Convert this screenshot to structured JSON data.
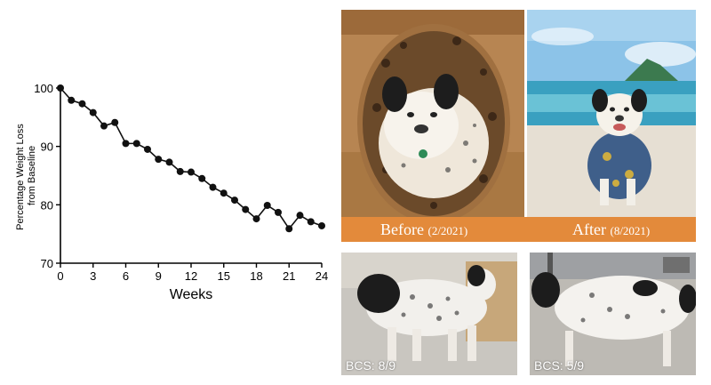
{
  "chart_data": {
    "type": "line",
    "title": "",
    "xlabel": "Weeks",
    "ylabel": "Percentage Weight Loss from Baseline",
    "ylabel_lines": [
      "Percentage Weight Loss",
      "from Baseline"
    ],
    "xlim": [
      0,
      24
    ],
    "ylim": [
      70,
      100
    ],
    "xticks": [
      0,
      3,
      6,
      9,
      12,
      15,
      18,
      21,
      24
    ],
    "yticks": [
      70,
      80,
      90,
      100
    ],
    "grid": false,
    "series": [
      {
        "x": [
          0,
          1,
          2,
          3,
          4,
          5,
          6,
          7,
          8,
          9,
          10,
          11,
          12,
          13,
          14,
          15,
          16,
          17,
          18,
          19,
          20,
          21,
          22,
          23,
          24
        ],
        "y": [
          100,
          97.9,
          97.3,
          95.8,
          93.5,
          94.1,
          90.5,
          90.5,
          89.5,
          87.8,
          87.3,
          85.7,
          85.6,
          84.5,
          83.0,
          82.0,
          80.8,
          79.2,
          77.6,
          79.9,
          78.7,
          75.9,
          78.2,
          77.1,
          76.4
        ]
      }
    ]
  },
  "photos": {
    "before_label": "Before",
    "before_date": "(2/2021)",
    "after_label": "After",
    "after_date": "(8/2021)",
    "bcs_before": "BCS: 8/9",
    "bcs_after": "BCS: 5/9"
  },
  "colors": {
    "caption_bar": "#e38a3b",
    "line": "#111111"
  }
}
